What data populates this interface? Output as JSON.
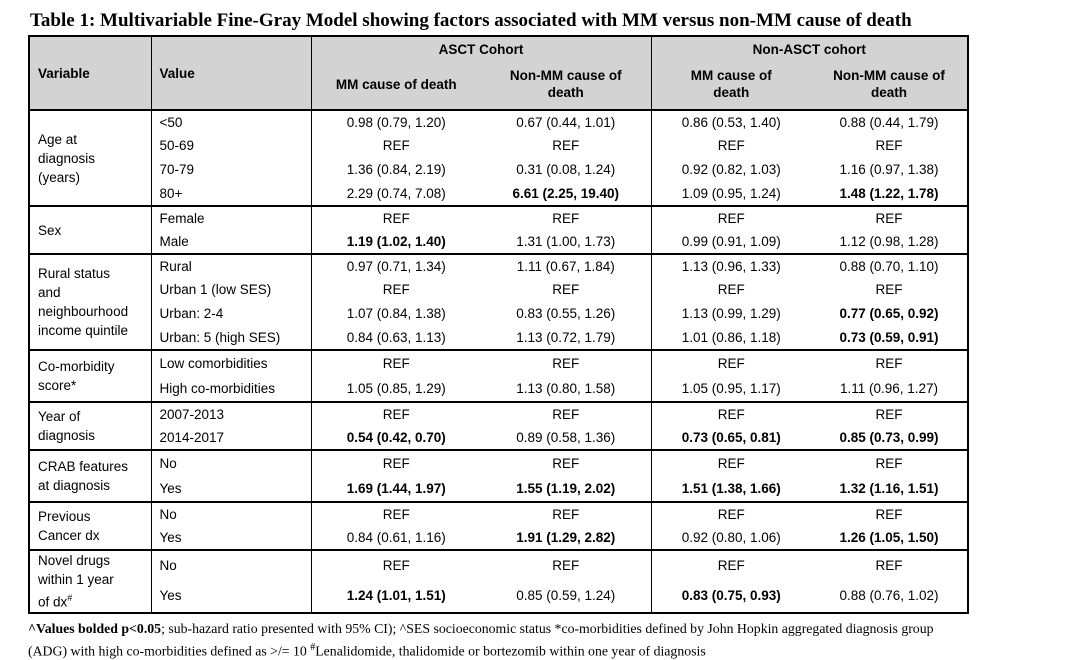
{
  "colors": {
    "header_bg": "#d3d3d3",
    "border": "#000000",
    "text": "#000000",
    "page_bg": "#ffffff"
  },
  "page": {
    "title": "Table 1: Multivariable Fine-Gray Model showing factors associated with MM versus non-MM cause of death"
  },
  "table": {
    "header": {
      "variable": "Variable",
      "value": "Value",
      "cohorts": [
        {
          "label": "ASCT Cohort",
          "columns": [
            {
              "lines": [
                "MM cause of death"
              ]
            },
            {
              "lines": [
                "Non-MM cause of",
                "death"
              ]
            }
          ]
        },
        {
          "label": "Non-ASCT cohort",
          "columns": [
            {
              "lines": [
                "MM cause of",
                "death"
              ]
            },
            {
              "lines": [
                "Non-MM cause of",
                "death"
              ]
            }
          ]
        }
      ]
    },
    "groups": [
      {
        "id": "age",
        "variable_lines": [
          "Age at",
          "diagnosis",
          "(years)"
        ],
        "rows": [
          {
            "value": "<50",
            "cells": [
              "0.98 (0.79, 1.20)",
              "0.67 (0.44, 1.01)",
              "0.86 (0.53, 1.40)",
              "0.88 (0.44, 1.79)"
            ],
            "bold": [
              false,
              false,
              false,
              false
            ]
          },
          {
            "value": "50-69",
            "cells": [
              "REF",
              "REF",
              "REF",
              "REF"
            ],
            "bold": [
              false,
              false,
              false,
              false
            ]
          },
          {
            "value": "70-79",
            "cells": [
              "1.36 (0.84, 2.19)",
              "0.31 (0.08, 1.24)",
              "0.92 (0.82, 1.03)",
              "1.16 (0.97, 1.38)"
            ],
            "bold": [
              false,
              false,
              false,
              false
            ]
          },
          {
            "value": "80+",
            "cells": [
              "2.29 (0.74, 7.08)",
              "6.61 (2.25, 19.40)",
              "1.09 (0.95, 1.24)",
              "1.48 (1.22, 1.78)"
            ],
            "bold": [
              false,
              true,
              false,
              true
            ]
          }
        ]
      },
      {
        "id": "sex",
        "variable_lines": [
          "Sex"
        ],
        "rows": [
          {
            "value": "Female",
            "cells": [
              "REF",
              "REF",
              "REF",
              "REF"
            ],
            "bold": [
              false,
              false,
              false,
              false
            ]
          },
          {
            "value": "Male",
            "cells": [
              "1.19 (1.02, 1.40)",
              "1.31 (1.00, 1.73)",
              "0.99 (0.91, 1.09)",
              "1.12 (0.98, 1.28)"
            ],
            "bold": [
              true,
              false,
              false,
              false
            ]
          }
        ]
      },
      {
        "id": "rural",
        "variable_lines": [
          "Rural status",
          "and",
          "neighbourhood",
          "income quintile"
        ],
        "rows": [
          {
            "value": "Rural",
            "cells": [
              "0.97 (0.71, 1.34)",
              "1.11 (0.67, 1.84)",
              "1.13 (0.96, 1.33)",
              "0.88 (0.70, 1.10)"
            ],
            "bold": [
              false,
              false,
              false,
              false
            ]
          },
          {
            "value": "Urban 1 (low SES)",
            "cells": [
              "REF",
              "REF",
              "REF",
              "REF"
            ],
            "bold": [
              false,
              false,
              false,
              false
            ]
          },
          {
            "value": "Urban: 2-4",
            "cells": [
              "1.07 (0.84, 1.38)",
              "0.83 (0.55, 1.26)",
              "1.13 (0.99, 1.29)",
              "0.77 (0.65, 0.92)"
            ],
            "bold": [
              false,
              false,
              false,
              true
            ]
          },
          {
            "value": "Urban: 5 (high SES)",
            "cells": [
              "0.84 (0.63, 1.13)",
              "1.13 (0.72, 1.79)",
              "1.01 (0.86, 1.18)",
              "0.73 (0.59, 0.91)"
            ],
            "bold": [
              false,
              false,
              false,
              true
            ]
          }
        ]
      },
      {
        "id": "comorbidity",
        "variable_lines": [
          "Co-morbidity",
          "score*"
        ],
        "rows": [
          {
            "value": "Low comorbidities",
            "cells": [
              "REF",
              "REF",
              "REF",
              "REF"
            ],
            "bold": [
              false,
              false,
              false,
              false
            ]
          },
          {
            "value": "High co-morbidities",
            "cells": [
              "1.05 (0.85, 1.29)",
              "1.13 (0.80, 1.58)",
              "1.05 (0.95, 1.17)",
              "1.11 (0.96, 1.27)"
            ],
            "bold": [
              false,
              false,
              false,
              false
            ]
          }
        ]
      },
      {
        "id": "year",
        "variable_lines": [
          "Year of",
          "diagnosis"
        ],
        "rows": [
          {
            "value": "2007-2013",
            "cells": [
              "REF",
              "REF",
              "REF",
              "REF"
            ],
            "bold": [
              false,
              false,
              false,
              false
            ]
          },
          {
            "value": "2014-2017",
            "cells": [
              "0.54 (0.42, 0.70)",
              "0.89 (0.58, 1.36)",
              "0.73 (0.65, 0.81)",
              "0.85 (0.73, 0.99)"
            ],
            "bold": [
              true,
              false,
              true,
              true
            ]
          }
        ]
      },
      {
        "id": "crab",
        "variable_lines": [
          "CRAB features",
          "at diagnosis"
        ],
        "rows": [
          {
            "value": "No",
            "cells": [
              "REF",
              "REF",
              "REF",
              "REF"
            ],
            "bold": [
              false,
              false,
              false,
              false
            ]
          },
          {
            "value": "Yes",
            "cells": [
              "1.69 (1.44, 1.97)",
              "1.55 (1.19, 2.02)",
              "1.51 (1.38, 1.66)",
              "1.32 (1.16, 1.51)"
            ],
            "bold": [
              true,
              true,
              true,
              true
            ]
          }
        ]
      },
      {
        "id": "previous-cancer",
        "variable_lines": [
          "Previous",
          "Cancer dx"
        ],
        "rows": [
          {
            "value": "No",
            "cells": [
              "REF",
              "REF",
              "REF",
              "REF"
            ],
            "bold": [
              false,
              false,
              false,
              false
            ]
          },
          {
            "value": "Yes",
            "cells": [
              "0.84 (0.61, 1.16)",
              "1.91 (1.29, 2.82)",
              "0.92 (0.80, 1.06)",
              "1.26 (1.05, 1.50)"
            ],
            "bold": [
              false,
              true,
              false,
              true
            ]
          }
        ]
      },
      {
        "id": "novel-drugs",
        "variable_lines": [
          "Novel drugs",
          "within 1 year",
          "of dx"
        ],
        "variable_sup": "#",
        "rows": [
          {
            "value": "No",
            "cells": [
              "REF",
              "REF",
              "REF",
              "REF"
            ],
            "bold": [
              false,
              false,
              false,
              false
            ]
          },
          {
            "value": "Yes",
            "cells": [
              "1.24 (1.01, 1.51)",
              "0.85 (0.59, 1.24)",
              "0.83 (0.75, 0.93)",
              "0.88 (0.76, 1.02)"
            ],
            "bold": [
              true,
              false,
              true,
              false
            ]
          }
        ]
      }
    ]
  },
  "footnote": {
    "lines": [
      {
        "parts": [
          {
            "text": "^Values bolded p<0.05",
            "bold": true
          },
          {
            "text": "; sub-hazard ratio presented with 95% CI); ^SES socioeconomic status *co-morbidities defined by John Hopkin aggregated diagnosis group",
            "bold": false
          }
        ]
      },
      {
        "parts": [
          {
            "text": "(ADG) with high co-morbidities defined as >/= 10 ",
            "bold": false
          },
          {
            "text": "#",
            "sup": true
          },
          {
            "text": "Lenalidomide, thalidomide or bortezomib within one year of diagnosis",
            "bold": false
          }
        ]
      }
    ]
  }
}
